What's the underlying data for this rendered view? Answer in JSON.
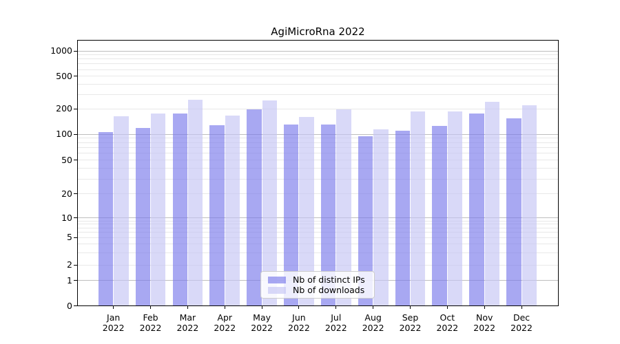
{
  "chart_data": {
    "type": "bar",
    "title": "AgiMicroRna 2022",
    "categories": [
      "Jan",
      "Feb",
      "Mar",
      "Apr",
      "May",
      "Jun",
      "Jul",
      "Aug",
      "Sep",
      "Oct",
      "Nov",
      "Dec"
    ],
    "x_year_label": "2022",
    "series": [
      {
        "name": "Nb of distinct IPs",
        "color": "rgba(122,122,235,0.65)",
        "values": [
          105,
          119,
          175,
          129,
          196,
          131,
          131,
          94,
          110,
          126,
          177,
          155
        ]
      },
      {
        "name": "Nb of downloads",
        "color": "rgba(196,196,245,0.65)",
        "values": [
          164,
          175,
          257,
          166,
          253,
          161,
          197,
          115,
          185,
          186,
          243,
          222
        ]
      }
    ],
    "yticks": [
      0,
      1,
      2,
      5,
      10,
      20,
      50,
      100,
      200,
      500,
      1000
    ],
    "ylim": [
      0,
      1000
    ],
    "yscale": "symlog",
    "grid": true,
    "legend_position": "lower-center",
    "colors": {
      "major_grid": "#bdbdbd",
      "minor_grid": "#e8e8e8",
      "axis": "#000000",
      "background": "#ffffff"
    }
  }
}
